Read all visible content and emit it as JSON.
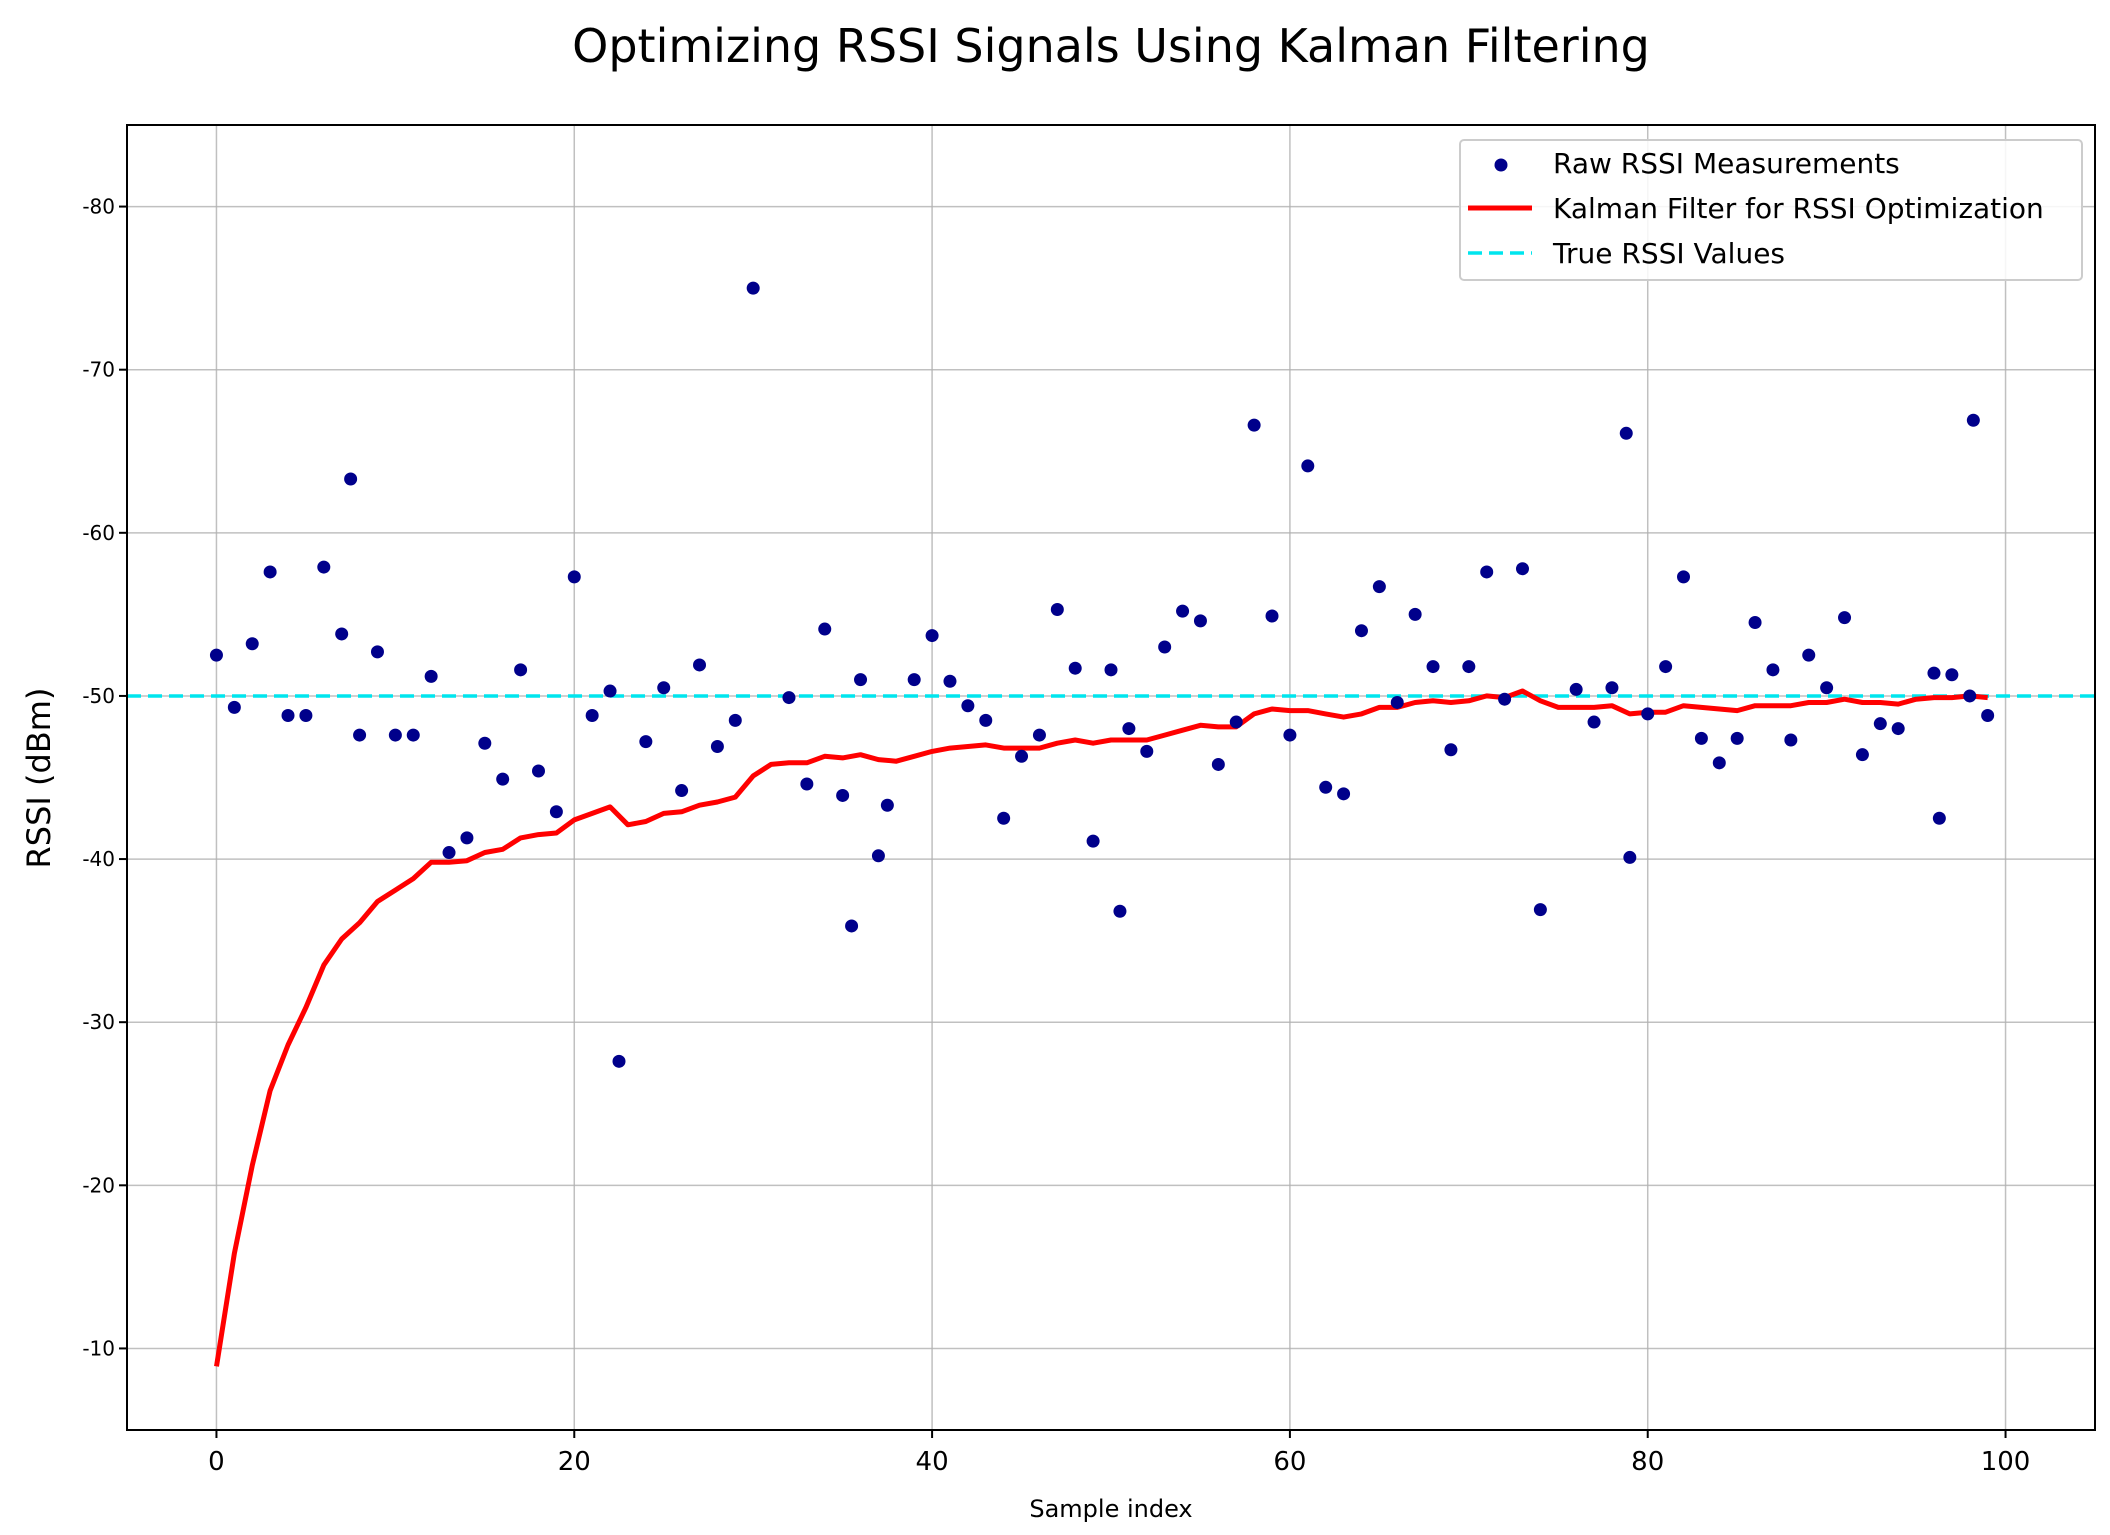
{
  "chart_data": {
    "type": "scatter",
    "title": "Optimizing RSSI Signals Using Kalman Filtering",
    "xlabel": "Sample index",
    "ylabel": "RSSI (dBm)",
    "xlim": [
      -5,
      105
    ],
    "ylim": [
      -5,
      -85
    ],
    "xticks": [
      0,
      20,
      40,
      60,
      80,
      100
    ],
    "yticks": [
      -10,
      -20,
      -30,
      -40,
      -50,
      -60,
      -70,
      -80
    ],
    "grid": true,
    "legend_position": "top-right",
    "colors": {
      "raw": "#00008b",
      "kalman": "#ff0000",
      "true": "#00e5ee"
    },
    "legend": [
      {
        "key": "raw",
        "label": "Raw RSSI Measurements",
        "style": "marker"
      },
      {
        "key": "kalman",
        "label": "Kalman Filter for RSSI Optimization",
        "style": "line"
      },
      {
        "key": "true",
        "label": "True RSSI Values",
        "style": "dashed"
      }
    ],
    "true_value": -50,
    "series": [
      {
        "name": "Raw RSSI Measurements",
        "type": "scatter",
        "x": [
          0,
          1,
          2,
          3,
          4,
          5,
          6,
          7,
          7.5,
          8,
          9,
          10,
          11,
          12,
          13,
          14,
          15,
          16,
          17,
          18,
          19,
          20,
          21,
          22,
          22.5,
          24,
          25,
          26,
          27,
          28,
          29,
          30,
          32,
          33,
          34,
          35,
          35.5,
          36,
          37,
          37.5,
          39,
          40,
          41,
          42,
          43,
          44,
          45,
          46,
          47,
          48,
          49,
          50,
          50.5,
          51,
          52,
          53,
          54,
          55,
          56,
          57,
          58,
          59,
          60,
          61,
          62,
          63,
          64,
          65,
          66,
          67,
          68,
          69,
          70,
          71,
          72,
          73,
          74,
          76,
          77,
          78,
          78.8,
          79,
          80,
          81,
          82,
          83,
          84,
          85,
          86,
          87,
          88,
          89,
          90,
          91,
          92,
          93,
          94,
          96,
          96.3,
          97,
          98,
          98.2,
          99
        ],
        "y": [
          -52.5,
          -49.3,
          -53.2,
          -57.6,
          -48.8,
          -48.8,
          -57.9,
          -53.8,
          -63.3,
          -47.6,
          -52.7,
          -47.6,
          -47.6,
          -51.2,
          -40.4,
          -41.3,
          -47.1,
          -44.9,
          -51.6,
          -45.4,
          -42.9,
          -57.3,
          -48.8,
          -50.3,
          -27.6,
          -47.2,
          -50.5,
          -44.2,
          -51.9,
          -46.9,
          -48.5,
          -75.0,
          -49.9,
          -44.6,
          -54.1,
          -43.9,
          -35.9,
          -51.0,
          -40.2,
          -43.3,
          -51.0,
          -53.7,
          -50.9,
          -49.4,
          -48.5,
          -42.5,
          -46.3,
          -47.6,
          -55.3,
          -51.7,
          -41.1,
          -51.6,
          -36.8,
          -48.0,
          -46.6,
          -53.0,
          -55.2,
          -54.6,
          -45.8,
          -48.4,
          -66.6,
          -54.9,
          -47.6,
          -64.1,
          -44.4,
          -44.0,
          -54.0,
          -56.7,
          -49.6,
          -55.0,
          -51.8,
          -46.7,
          -51.8,
          -57.6,
          -49.8,
          -57.8,
          -36.9,
          -50.4,
          -48.4,
          -50.5,
          -66.1,
          -40.1,
          -48.9,
          -51.8,
          -57.3,
          -47.4,
          -45.9,
          -47.4,
          -54.5,
          -51.6,
          -47.3,
          -52.5,
          -50.5,
          -54.8,
          -46.4,
          -48.3,
          -48.0,
          -51.4,
          -42.5,
          -51.3,
          -50.0,
          -66.9,
          -48.8
        ]
      },
      {
        "name": "Kalman Filter for RSSI Optimization",
        "type": "line",
        "x": [
          0,
          1,
          2,
          3,
          4,
          5,
          6,
          7,
          8,
          9,
          10,
          11,
          12,
          13,
          14,
          15,
          16,
          17,
          18,
          19,
          20,
          21,
          22,
          23,
          24,
          25,
          26,
          27,
          28,
          29,
          30,
          31,
          32,
          33,
          34,
          35,
          36,
          37,
          38,
          39,
          40,
          41,
          42,
          43,
          44,
          45,
          46,
          47,
          48,
          49,
          50,
          51,
          52,
          53,
          54,
          55,
          56,
          57,
          58,
          59,
          60,
          61,
          62,
          63,
          64,
          65,
          66,
          67,
          68,
          69,
          70,
          71,
          72,
          73,
          74,
          75,
          76,
          77,
          78,
          79,
          80,
          81,
          82,
          83,
          84,
          85,
          86,
          87,
          88,
          89,
          90,
          91,
          92,
          93,
          94,
          95,
          96,
          97,
          98,
          99
        ],
        "y": [
          -8.9,
          -15.8,
          -21.2,
          -25.8,
          -28.6,
          -30.9,
          -33.5,
          -35.1,
          -36.1,
          -37.4,
          -38.1,
          -38.8,
          -39.8,
          -39.8,
          -39.9,
          -40.4,
          -40.6,
          -41.3,
          -41.5,
          -41.6,
          -42.4,
          -42.8,
          -43.2,
          -42.1,
          -42.3,
          -42.8,
          -42.9,
          -43.3,
          -43.5,
          -43.8,
          -45.1,
          -45.8,
          -45.9,
          -45.9,
          -46.3,
          -46.2,
          -46.4,
          -46.1,
          -46.0,
          -46.3,
          -46.6,
          -46.8,
          -46.9,
          -47.0,
          -46.8,
          -46.8,
          -46.8,
          -47.1,
          -47.3,
          -47.1,
          -47.3,
          -47.3,
          -47.3,
          -47.6,
          -47.9,
          -48.2,
          -48.1,
          -48.1,
          -48.9,
          -49.2,
          -49.1,
          -49.1,
          -48.9,
          -48.7,
          -48.9,
          -49.3,
          -49.3,
          -49.6,
          -49.7,
          -49.6,
          -49.7,
          -50.0,
          -49.9,
          -50.3,
          -49.7,
          -49.3,
          -49.3,
          -49.3,
          -49.4,
          -48.9,
          -49.0,
          -49.0,
          -49.4,
          -49.3,
          -49.2,
          -49.1,
          -49.4,
          -49.4,
          -49.4,
          -49.6,
          -49.6,
          -49.8,
          -49.6,
          -49.6,
          -49.5,
          -49.8,
          -49.9,
          -49.9,
          -50.0,
          -49.9
        ]
      }
    ]
  }
}
